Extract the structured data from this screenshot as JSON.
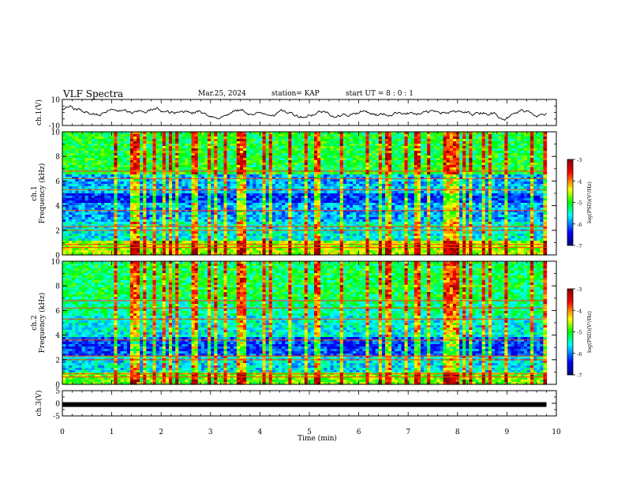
{
  "header": {
    "title": "VLF Spectra",
    "date": "Mar.25, 2024",
    "station": "station= KAP",
    "start_ut": "start  UT =  8 : 0 : 1"
  },
  "chart_data": [
    {
      "type": "line",
      "ylabel": "ch.1(V)",
      "ylim": [
        -10,
        10
      ],
      "yticks": [
        "10",
        "-10"
      ],
      "description_series": "voltage waveform, values approx between -8 and 6 V over 0–9.8 min"
    },
    {
      "type": "heatmap",
      "ylabel": "ch.1\nFrequency (kHz)",
      "ylim": [
        0,
        10
      ],
      "yticks": [
        "0",
        "2",
        "4",
        "6",
        "8",
        "10"
      ],
      "colorbar": {
        "label": "log(PSD)(V²/Hz)",
        "range": [
          -7,
          -3
        ],
        "ticks": [
          "-3",
          "-4",
          "-5",
          "-6",
          "-7"
        ]
      }
    },
    {
      "type": "heatmap",
      "ylabel": "ch.2\nFrequency (kHz)",
      "ylim": [
        0,
        10
      ],
      "yticks": [
        "0",
        "2",
        "4",
        "6",
        "8",
        "10"
      ],
      "colorbar": {
        "label": "log(PSD)(V²/Hz)",
        "range": [
          -7,
          -3
        ],
        "ticks": [
          "-3",
          "-4",
          "-5",
          "-6",
          "-7"
        ]
      }
    },
    {
      "type": "line",
      "ylabel": "ch.3(V)",
      "ylim": [
        -5,
        5
      ],
      "yticks": [
        "5",
        "0",
        "-5"
      ],
      "series_value": -0.5
    }
  ],
  "xaxis": {
    "label": "Time (min)",
    "range": [
      0,
      10
    ],
    "ticks": [
      "0",
      "1",
      "2",
      "3",
      "4",
      "5",
      "6",
      "7",
      "8",
      "9",
      "10"
    ],
    "data_end": 9.8
  },
  "colors": {
    "colormap": [
      "#000080",
      "#0000ff",
      "#00ffff",
      "#00ff00",
      "#ffff00",
      "#ff0000",
      "#800000"
    ]
  }
}
